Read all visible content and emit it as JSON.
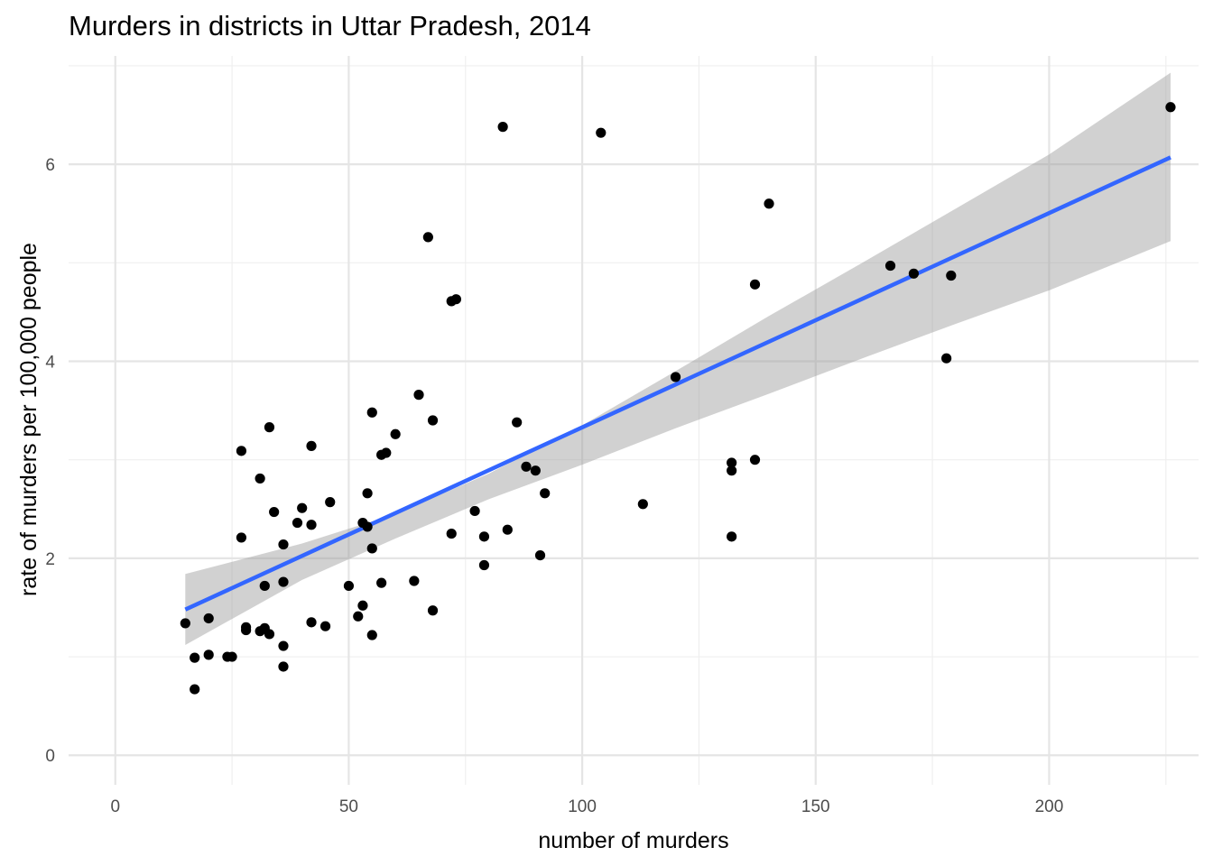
{
  "chart_data": {
    "type": "scatter",
    "title": "Murders in districts in Uttar Pradesh, 2014",
    "xlabel": "number of murders",
    "ylabel": "rate of murders per 100,000 people",
    "xlim": [
      -10,
      232
    ],
    "ylim": [
      -0.3,
      7.1
    ],
    "x_ticks": [
      0,
      50,
      100,
      150,
      200
    ],
    "y_ticks": [
      0,
      2,
      4,
      6
    ],
    "x_tick_labels": [
      "0",
      "50",
      "100",
      "150",
      "200"
    ],
    "y_tick_labels": [
      "0",
      "2",
      "4",
      "6"
    ],
    "x_minor_ticks": [
      25,
      75,
      125,
      175,
      225
    ],
    "y_minor_ticks": [
      1,
      3,
      5,
      7
    ],
    "grid": true,
    "colors": {
      "points": "#000000",
      "fit_line": "#3366ff",
      "confidence_band": "#999999",
      "grid": "#e5e5e5"
    },
    "points": [
      {
        "x": 15,
        "y": 1.34
      },
      {
        "x": 17,
        "y": 0.99
      },
      {
        "x": 17,
        "y": 0.67
      },
      {
        "x": 20,
        "y": 1.39
      },
      {
        "x": 20,
        "y": 1.02
      },
      {
        "x": 24,
        "y": 1.0
      },
      {
        "x": 25,
        "y": 1.0
      },
      {
        "x": 27,
        "y": 3.09
      },
      {
        "x": 27,
        "y": 2.21
      },
      {
        "x": 28,
        "y": 1.3
      },
      {
        "x": 28,
        "y": 1.27
      },
      {
        "x": 31,
        "y": 2.81
      },
      {
        "x": 31,
        "y": 1.26
      },
      {
        "x": 32,
        "y": 1.72
      },
      {
        "x": 32,
        "y": 1.29
      },
      {
        "x": 33,
        "y": 3.33
      },
      {
        "x": 33,
        "y": 1.23
      },
      {
        "x": 34,
        "y": 2.47
      },
      {
        "x": 36,
        "y": 2.14
      },
      {
        "x": 36,
        "y": 1.76
      },
      {
        "x": 36,
        "y": 1.11
      },
      {
        "x": 36,
        "y": 0.9
      },
      {
        "x": 39,
        "y": 2.36
      },
      {
        "x": 40,
        "y": 2.51
      },
      {
        "x": 42,
        "y": 3.14
      },
      {
        "x": 42,
        "y": 2.34
      },
      {
        "x": 42,
        "y": 1.35
      },
      {
        "x": 45,
        "y": 1.31
      },
      {
        "x": 46,
        "y": 2.57
      },
      {
        "x": 50,
        "y": 1.72
      },
      {
        "x": 52,
        "y": 1.41
      },
      {
        "x": 53,
        "y": 2.36
      },
      {
        "x": 53,
        "y": 1.52
      },
      {
        "x": 54,
        "y": 2.66
      },
      {
        "x": 54,
        "y": 2.32
      },
      {
        "x": 55,
        "y": 3.48
      },
      {
        "x": 55,
        "y": 2.1
      },
      {
        "x": 55,
        "y": 1.22
      },
      {
        "x": 57,
        "y": 3.05
      },
      {
        "x": 57,
        "y": 1.75
      },
      {
        "x": 58,
        "y": 3.07
      },
      {
        "x": 60,
        "y": 3.26
      },
      {
        "x": 64,
        "y": 1.77
      },
      {
        "x": 65,
        "y": 3.66
      },
      {
        "x": 67,
        "y": 5.26
      },
      {
        "x": 68,
        "y": 3.4
      },
      {
        "x": 68,
        "y": 1.47
      },
      {
        "x": 72,
        "y": 4.61
      },
      {
        "x": 72,
        "y": 2.25
      },
      {
        "x": 73,
        "y": 4.63
      },
      {
        "x": 77,
        "y": 2.48
      },
      {
        "x": 79,
        "y": 2.22
      },
      {
        "x": 79,
        "y": 1.93
      },
      {
        "x": 83,
        "y": 6.38
      },
      {
        "x": 84,
        "y": 2.29
      },
      {
        "x": 86,
        "y": 3.38
      },
      {
        "x": 88,
        "y": 2.93
      },
      {
        "x": 90,
        "y": 2.89
      },
      {
        "x": 91,
        "y": 2.03
      },
      {
        "x": 92,
        "y": 2.66
      },
      {
        "x": 104,
        "y": 6.32
      },
      {
        "x": 113,
        "y": 2.55
      },
      {
        "x": 120,
        "y": 3.84
      },
      {
        "x": 132,
        "y": 2.97
      },
      {
        "x": 132,
        "y": 2.89
      },
      {
        "x": 132,
        "y": 2.22
      },
      {
        "x": 137,
        "y": 4.78
      },
      {
        "x": 137,
        "y": 3.0
      },
      {
        "x": 140,
        "y": 5.6
      },
      {
        "x": 166,
        "y": 4.97
      },
      {
        "x": 171,
        "y": 4.89
      },
      {
        "x": 178,
        "y": 4.03
      },
      {
        "x": 179,
        "y": 4.87
      },
      {
        "x": 226,
        "y": 6.58
      }
    ],
    "fit_line": {
      "x": [
        15,
        226
      ],
      "y": [
        1.48,
        6.07
      ]
    },
    "confidence_band": {
      "x": [
        15,
        40,
        60,
        80,
        100,
        120,
        140,
        160,
        180,
        200,
        226
      ],
      "upper": [
        1.84,
        2.15,
        2.45,
        2.86,
        3.35,
        3.9,
        4.46,
        5.0,
        5.55,
        6.1,
        6.93
      ],
      "lower": [
        1.12,
        1.78,
        2.2,
        2.6,
        2.95,
        3.32,
        3.67,
        4.03,
        4.38,
        4.72,
        5.22
      ]
    }
  }
}
